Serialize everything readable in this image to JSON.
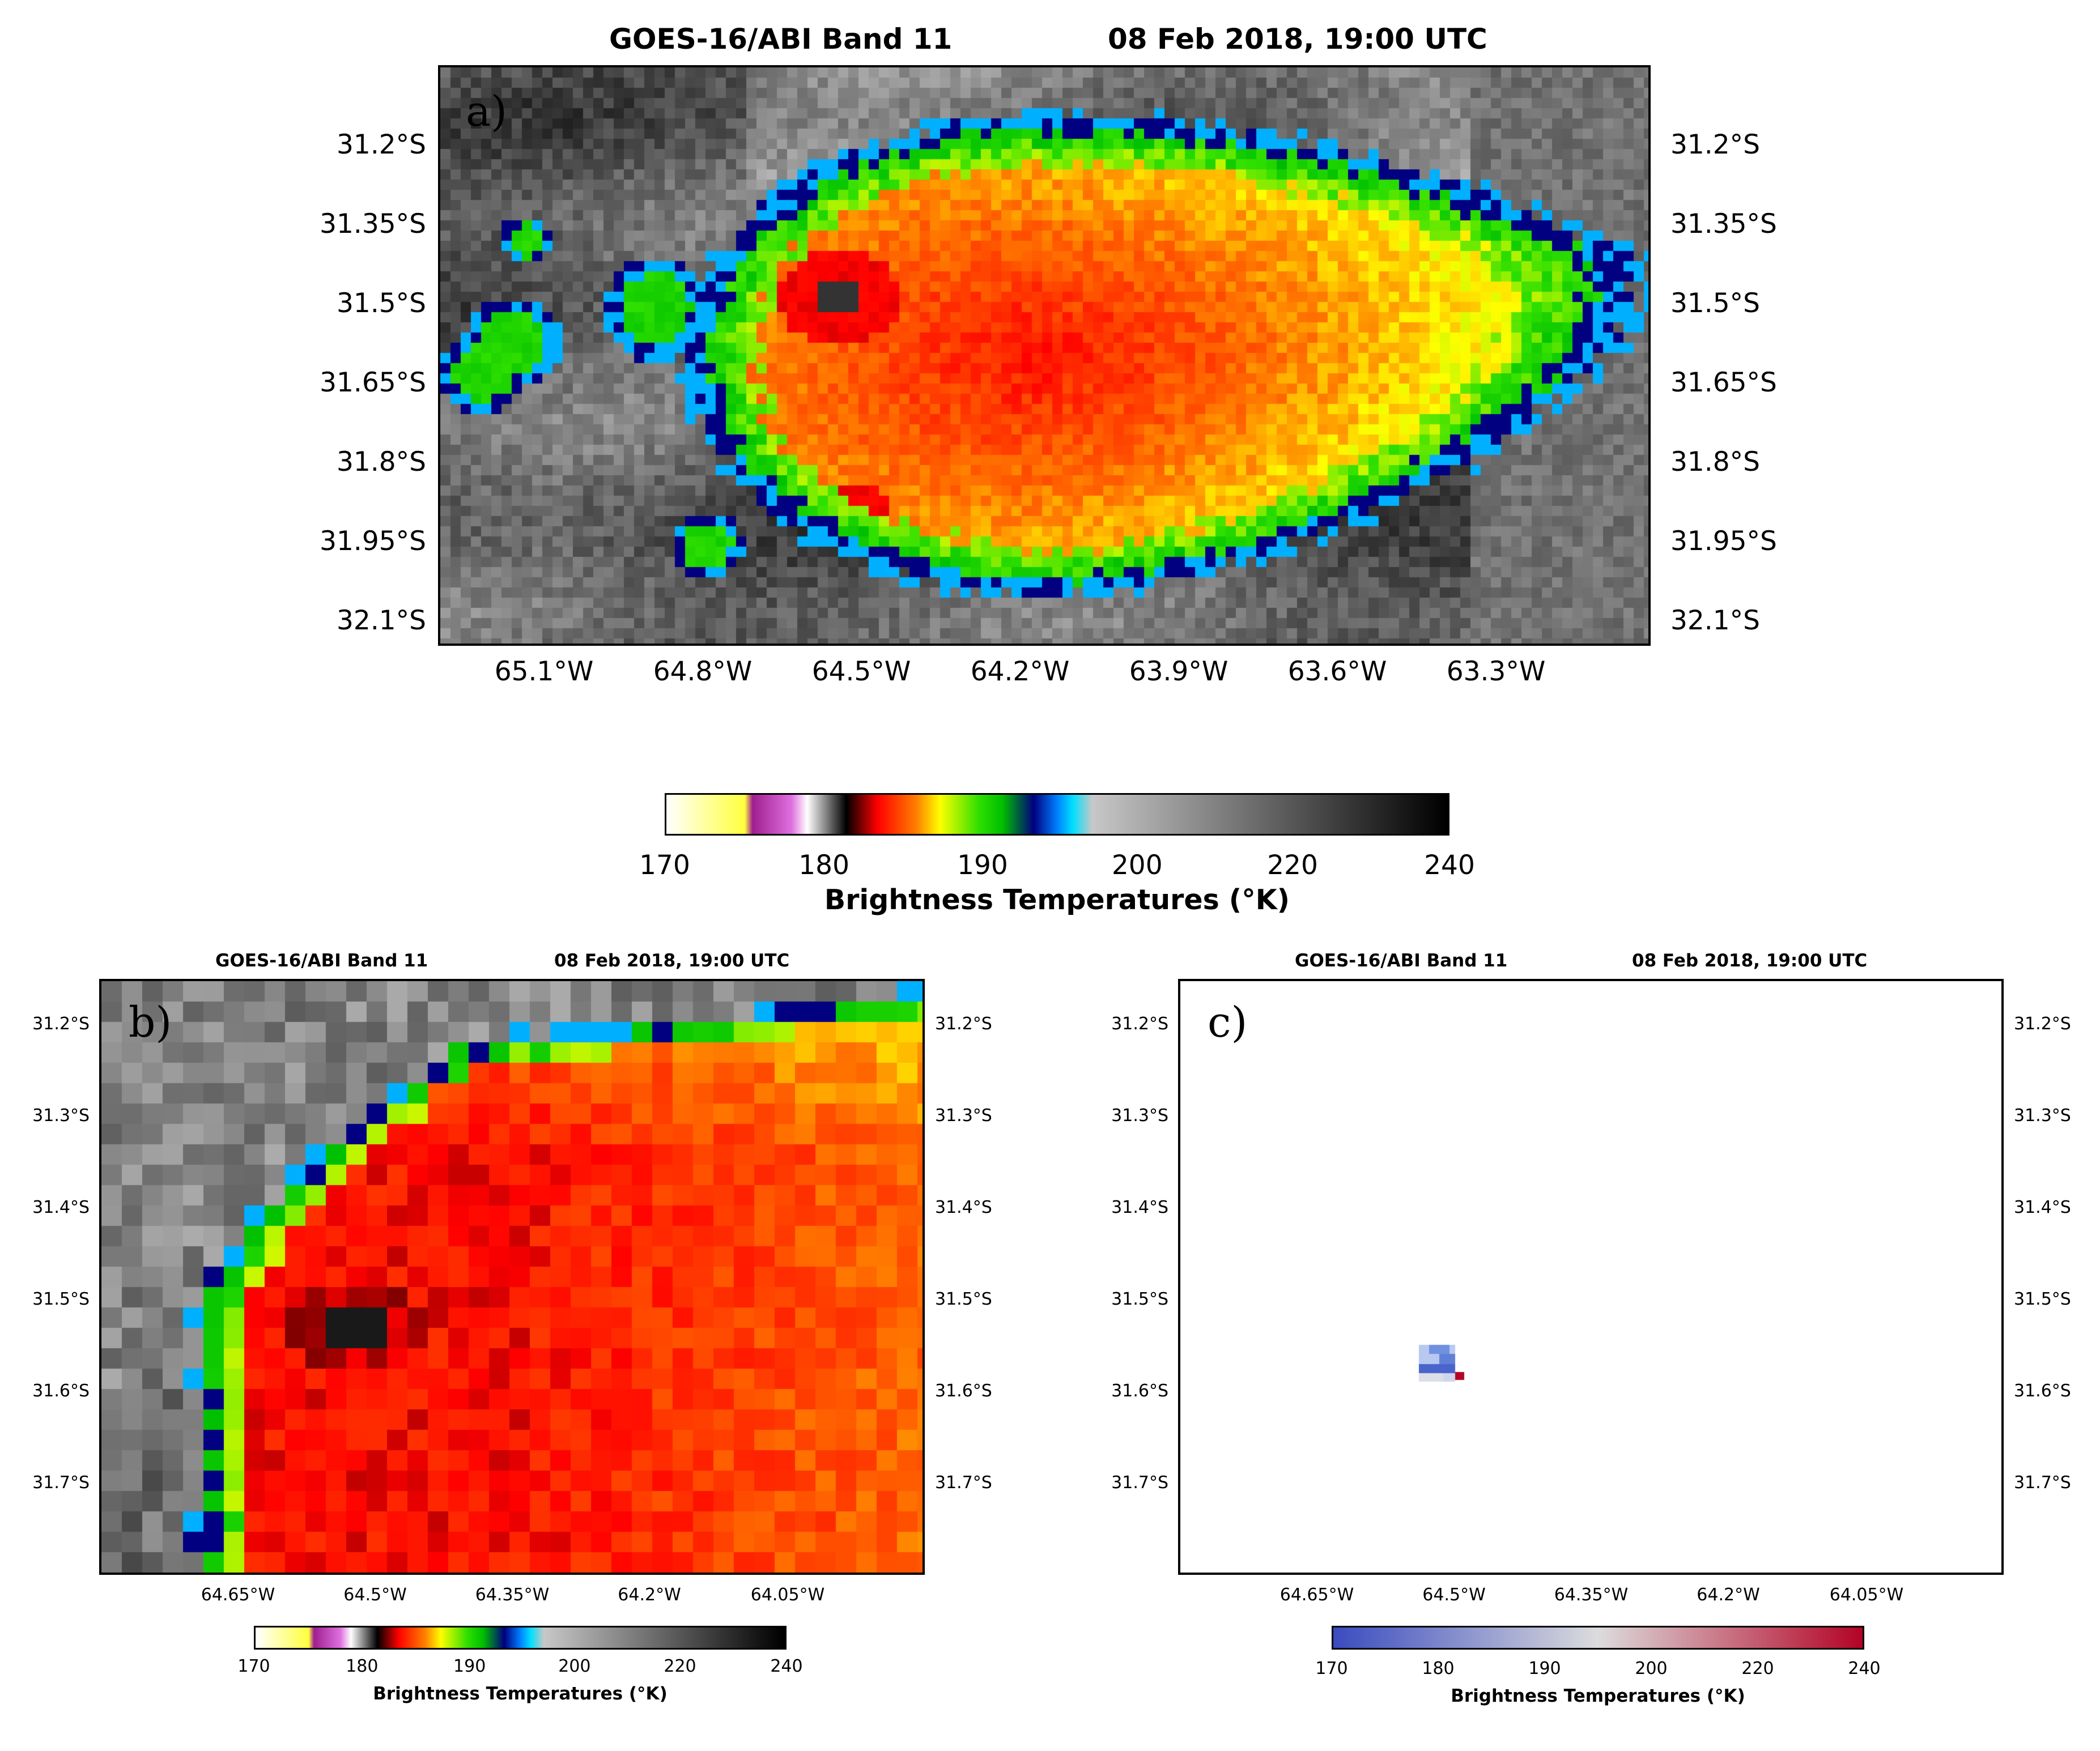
{
  "panels": {
    "a": {
      "label": "a)",
      "title_left": "GOES-16/ABI Band 11",
      "title_right": "08 Feb 2018,  19:00 UTC",
      "lat_ticks": [
        "31.2°S",
        "31.35°S",
        "31.5°S",
        "31.65°S",
        "31.8°S",
        "31.95°S",
        "32.1°S"
      ],
      "lon_ticks": [
        "65.1°W",
        "64.8°W",
        "64.5°W",
        "64.2°W",
        "63.9°W",
        "63.6°W",
        "63.3°W"
      ]
    },
    "b": {
      "label": "b)",
      "title_left": "GOES-16/ABI Band 11",
      "title_right": "08 Feb 2018,  19:00 UTC",
      "lat_ticks": [
        "31.2°S",
        "31.3°S",
        "31.4°S",
        "31.5°S",
        "31.6°S",
        "31.7°S"
      ],
      "lon_ticks": [
        "64.65°W",
        "64.5°W",
        "64.35°W",
        "64.2°W",
        "64.05°W"
      ]
    },
    "c": {
      "label": "c)",
      "title_left": "GOES-16/ABI Band 11",
      "title_right": "08 Feb 2018,  19:00 UTC",
      "lat_ticks": [
        "31.2°S",
        "31.3°S",
        "31.4°S",
        "31.5°S",
        "31.6°S",
        "31.7°S"
      ],
      "lon_ticks": [
        "64.65°W",
        "64.5°W",
        "64.35°W",
        "64.2°W",
        "64.05°W"
      ]
    }
  },
  "colorbars": {
    "main": {
      "label": "Brightness Temperatures (°K)",
      "ticks": [
        "170",
        "180",
        "190",
        "200",
        "220",
        "240"
      ]
    },
    "b": {
      "label": "Brightness Temperatures (°K)",
      "ticks": [
        "170",
        "180",
        "190",
        "200",
        "220",
        "240"
      ]
    },
    "c": {
      "label": "Brightness Temperatures (°K)",
      "ticks": [
        "170",
        "180",
        "190",
        "200",
        "220",
        "240"
      ]
    }
  },
  "colors": {
    "enhanced_ir_stops": [
      "#ffffff",
      "#ffff40",
      "#c040c0",
      "#ffffff",
      "#000000",
      "#ff0000",
      "#ffff00",
      "#00ff00",
      "#000080",
      "#00e0ff",
      "#c8c8c8",
      "#000000"
    ],
    "diverging_stops": [
      "#3b4cc0",
      "#dddddd",
      "#b40426"
    ],
    "background_gray": "#6e6e6e"
  }
}
